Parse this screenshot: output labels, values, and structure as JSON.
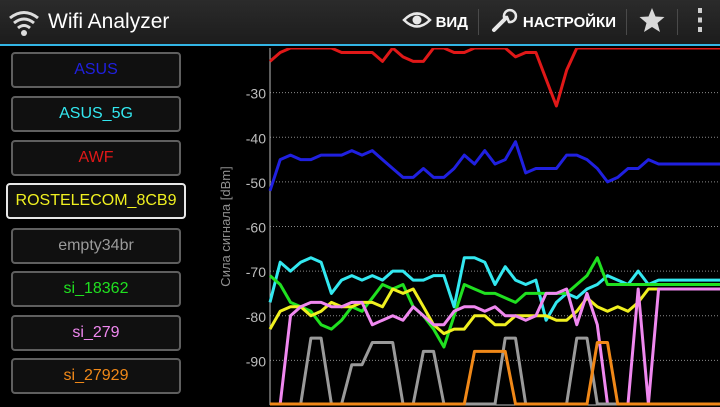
{
  "app": {
    "title": "Wifi Analyzer"
  },
  "toolbar": {
    "view_label": "ВИД",
    "settings_label": "НАСТРОЙКИ"
  },
  "networks": [
    {
      "name": "ASUS",
      "color": "#2020e0",
      "selected": false
    },
    {
      "name": "ASUS_5G",
      "color": "#33e8f0",
      "selected": false
    },
    {
      "name": "AWF",
      "color": "#e01818",
      "selected": false
    },
    {
      "name": "ROSTELECOM_8CB9",
      "color": "#f0f020",
      "selected": true
    },
    {
      "name": "empty34br",
      "color": "#9a9a9a",
      "selected": false
    },
    {
      "name": "si_18362",
      "color": "#20e020",
      "selected": false
    },
    {
      "name": "si_279",
      "color": "#f088f0",
      "selected": false
    },
    {
      "name": "si_27929",
      "color": "#f08818",
      "selected": false
    }
  ],
  "chart_data": {
    "type": "line",
    "ylabel": "Сила сигнала [dBm]",
    "ylim": [
      -100,
      -20
    ],
    "yticks": [
      "-30",
      "-40",
      "-50",
      "-60",
      "-70",
      "-80",
      "-90"
    ],
    "grid": true,
    "series": [
      {
        "name": "AWF",
        "color": "#e01818",
        "values": [
          -23,
          -21,
          -20,
          -20,
          -20,
          -20,
          -20,
          -21,
          -21,
          -21,
          -21,
          -23,
          -20,
          -22,
          -23,
          -23,
          -20,
          -20,
          -21,
          -21,
          -20,
          -20,
          -20,
          -20,
          -22,
          -21,
          -21,
          -27,
          -33,
          -25,
          -20,
          -20,
          -20,
          -20,
          -20,
          -20,
          -20,
          -20,
          -20,
          -20,
          -20,
          -20,
          -20,
          -20,
          -20
        ]
      },
      {
        "name": "ASUS",
        "color": "#2020e0",
        "values": [
          -52,
          -45,
          -44,
          -45,
          -45,
          -44,
          -44,
          -44,
          -43,
          -44,
          -43,
          -45,
          -47,
          -49,
          -49,
          -47,
          -49,
          -49,
          -47,
          -44,
          -46,
          -43,
          -46,
          -45,
          -41,
          -48,
          -47,
          -47,
          -47,
          -44,
          -44,
          -45,
          -47,
          -50,
          -49,
          -47,
          -47,
          -45,
          -46,
          -46,
          -46,
          -46,
          -46,
          -46,
          -46
        ]
      },
      {
        "name": "ASUS_5G",
        "color": "#33e8f0",
        "values": [
          -77,
          -68,
          -70,
          -68,
          -67,
          -68,
          -75,
          -72,
          -71,
          -72,
          -71,
          -72,
          -70,
          -70,
          -72,
          -72,
          -71,
          -71,
          -78,
          -67,
          -67,
          -68,
          -73,
          -69,
          -72,
          -73,
          -72,
          -81,
          -77,
          -75,
          -76,
          -74,
          -73,
          -71,
          -72,
          -73,
          -70,
          -73,
          -72,
          -72,
          -72,
          -72,
          -72,
          -72,
          -72
        ]
      },
      {
        "name": "si_18362",
        "color": "#20e020",
        "values": [
          -71,
          -73,
          -77,
          -78,
          -79,
          -82,
          -83,
          -81,
          -78,
          -79,
          -76,
          -73,
          -74,
          -73,
          -78,
          -80,
          -83,
          -87,
          -80,
          -73,
          -74,
          -75,
          -75,
          -76,
          -77,
          -75,
          -75,
          -75,
          -75,
          -75,
          -73,
          -71,
          -67,
          -73,
          -73,
          -73,
          -73,
          -73,
          -73,
          -73,
          -73,
          -73,
          -73,
          -73,
          -73
        ]
      },
      {
        "name": "ROSTELECOM_8CB9",
        "color": "#f0f020",
        "values": [
          -83,
          -79,
          -78,
          -78,
          -80,
          -79,
          -77,
          -78,
          -78,
          -77,
          -77,
          -78,
          -74,
          -75,
          -74,
          -78,
          -82,
          -84,
          -83,
          -83,
          -80,
          -80,
          -82,
          -82,
          -80,
          -80,
          -80,
          -80,
          -81,
          -81,
          -79,
          -76,
          -78,
          -79,
          -78,
          -79,
          -77,
          -74,
          -74,
          -74,
          -74,
          -74,
          -74,
          -74,
          -74
        ]
      },
      {
        "name": "si_279",
        "color": "#f088f0",
        "values": [
          -100,
          -100,
          -80,
          -78,
          -77,
          -77,
          -78,
          -78,
          -77,
          -77,
          -82,
          -81,
          -80,
          -81,
          -78,
          -80,
          -82,
          -82,
          -79,
          -78,
          -78,
          -79,
          -78,
          -80,
          -80,
          -81,
          -80,
          -75,
          -75,
          -74,
          -82,
          -75,
          -82,
          -100,
          -100,
          -100,
          -74,
          -100,
          -74,
          -74,
          -74,
          -74,
          -74,
          -74,
          -74
        ]
      },
      {
        "name": "empty34br",
        "color": "#9a9a9a",
        "values": [
          -100,
          -100,
          -100,
          -100,
          -85,
          -85,
          -100,
          -100,
          -91,
          -91,
          -86,
          -86,
          -86,
          -100,
          -100,
          -88,
          -88,
          -100,
          -100,
          -100,
          -100,
          -100,
          -100,
          -85,
          -85,
          -100,
          -100,
          -100,
          -100,
          -100,
          -85,
          -85,
          -100,
          -100,
          -100,
          -100,
          -100,
          -100,
          -100,
          -100,
          -100,
          -100,
          -100,
          -100,
          -100
        ]
      },
      {
        "name": "si_27929",
        "color": "#f08818",
        "values": [
          -100,
          -100,
          -100,
          -100,
          -100,
          -100,
          -100,
          -100,
          -100,
          -100,
          -100,
          -100,
          -100,
          -100,
          -100,
          -100,
          -100,
          -100,
          -100,
          -100,
          -88,
          -88,
          -88,
          -88,
          -100,
          -100,
          -100,
          -100,
          -100,
          -100,
          -100,
          -100,
          -86,
          -86,
          -100,
          -100,
          -100,
          -100,
          -100,
          -100,
          -100,
          -100,
          -100,
          -100,
          -100
        ]
      }
    ]
  }
}
